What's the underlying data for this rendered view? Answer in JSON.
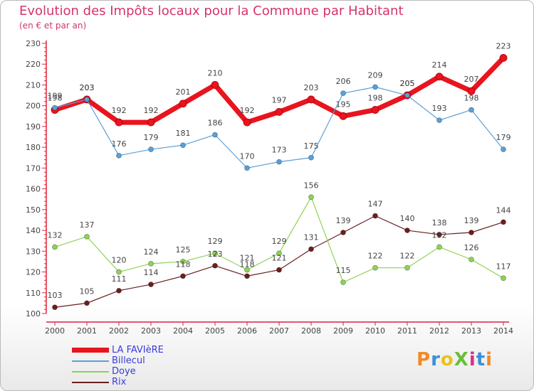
{
  "title": "Evolution des Impôts locaux pour la Commune par Habitant",
  "subtitle": "(en € et par an)",
  "logo": {
    "text": "ProXiti",
    "colors": [
      "#f08a2a",
      "#3b8fd9",
      "#e8c319",
      "#6abf3a",
      "#d63384",
      "#3b8fd9",
      "#f08a2a"
    ]
  },
  "chart_data": {
    "type": "line",
    "x": [
      "2000",
      "2001",
      "2002",
      "2003",
      "2004",
      "2005",
      "2006",
      "2007",
      "2008",
      "2009",
      "2010",
      "2011",
      "2012",
      "2013",
      "2014"
    ],
    "ylim": [
      100,
      230
    ],
    "yticks": [
      100,
      110,
      120,
      130,
      140,
      150,
      160,
      170,
      180,
      190,
      200,
      210,
      220,
      230
    ],
    "grid": false,
    "legend_position": "bottom-left",
    "series": [
      {
        "name": "LA FAVIèRE",
        "color": "#e8141e",
        "values": [
          198,
          203,
          192,
          192,
          201,
          210,
          192,
          197,
          203,
          195,
          198,
          205,
          214,
          207,
          223
        ]
      },
      {
        "name": "Billecul",
        "color": "#5aa0d8",
        "values": [
          199,
          203,
          176,
          179,
          181,
          186,
          170,
          173,
          175,
          206,
          209,
          205,
          193,
          198,
          179
        ]
      },
      {
        "name": "Doye",
        "color": "#8ed354",
        "values": [
          132,
          137,
          120,
          124,
          125,
          129,
          121,
          129,
          156,
          115,
          122,
          122,
          132,
          126,
          117
        ]
      },
      {
        "name": "Rix",
        "color": "#6b1e1e",
        "values": [
          103,
          105,
          111,
          114,
          118,
          123,
          118,
          121,
          131,
          139,
          147,
          140,
          138,
          139,
          144
        ]
      }
    ]
  }
}
